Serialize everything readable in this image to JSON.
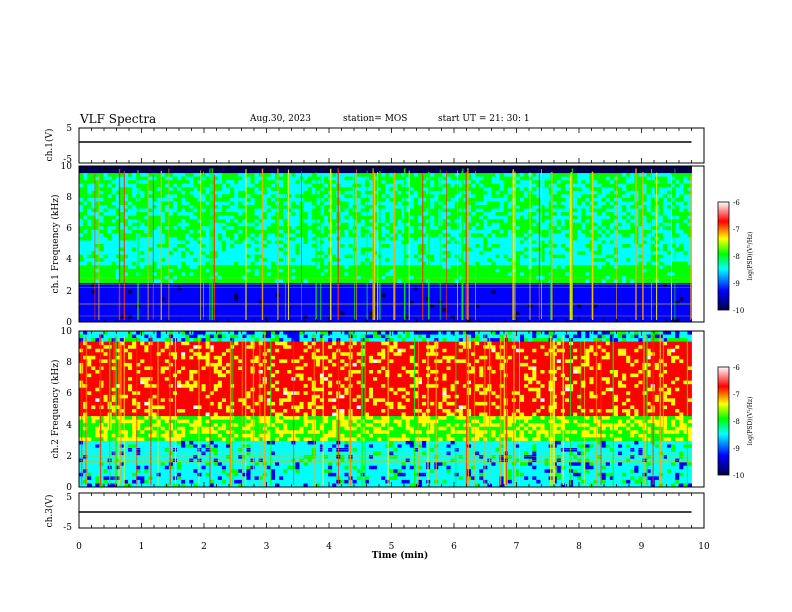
{
  "header": {
    "title": "VLF Spectra",
    "date": "Aug.30, 2023",
    "station": "station= MOS",
    "start": "start  UT  =   21: 30: 1"
  },
  "chart_data": [
    {
      "type": "line",
      "ylabel": "ch.1(V)",
      "yticks": [
        "5",
        "-5"
      ],
      "ylim": [
        -5,
        5
      ],
      "x_range_min": [
        0,
        9.8
      ],
      "series": [
        {
          "values": [
            0,
            0
          ]
        }
      ]
    },
    {
      "type": "heatmap",
      "ylabel": "ch.1 Frequency (kHz)",
      "ylim": [
        0,
        10
      ],
      "yticks": [
        "0",
        "2",
        "4",
        "6",
        "8",
        "10"
      ],
      "colorbar": {
        "label": "log(PSD)(V²/Hz)",
        "range": [
          -10,
          -6
        ],
        "ticks": [
          "-6",
          "-7",
          "-8",
          "-9",
          "-10"
        ]
      }
    },
    {
      "type": "heatmap",
      "ylabel": "ch.2 Frequency (kHz)",
      "ylim": [
        0,
        10
      ],
      "yticks": [
        "0",
        "2",
        "4",
        "6",
        "8",
        "10"
      ],
      "colorbar": {
        "label": "log(PSD)(V²/Hz)",
        "range": [
          -10,
          -6
        ],
        "ticks": [
          "-6",
          "-7",
          "-8",
          "-9",
          "-10"
        ]
      }
    },
    {
      "type": "line",
      "ylabel": "ch.3(V)",
      "yticks": [
        "5",
        "-5"
      ],
      "ylim": [
        -5,
        5
      ],
      "x_range_min": [
        0,
        9.8
      ],
      "series": [
        {
          "values": [
            0,
            0
          ]
        }
      ]
    }
  ],
  "xaxis": {
    "label": "Time  (min)",
    "lim": [
      0,
      10
    ],
    "ticks": [
      "0",
      "1",
      "2",
      "3",
      "4",
      "5",
      "6",
      "7",
      "8",
      "9",
      "10"
    ]
  },
  "colors": {
    "colormap": [
      "#00004a",
      "#0000ff",
      "#00ffff",
      "#00ff00",
      "#ffff00",
      "#ff0000",
      "#ffffff"
    ]
  }
}
